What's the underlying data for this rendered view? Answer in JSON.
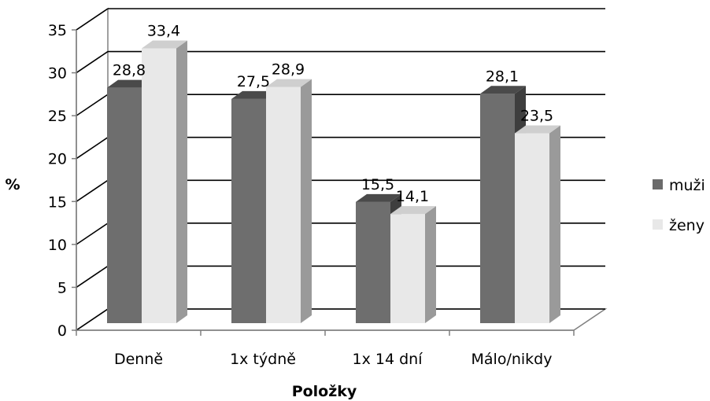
{
  "chart_data": {
    "type": "bar",
    "title": "",
    "xlabel": "Položky",
    "ylabel": "%",
    "ylim": [
      0,
      35
    ],
    "yticks": [
      "0",
      "5",
      "10",
      "15",
      "20",
      "25",
      "30",
      "35"
    ],
    "categories": [
      "Denně",
      "1x týdně",
      "1x 14 dní",
      "Málo/nikdy"
    ],
    "series": [
      {
        "name": "muži",
        "values": [
          28.8,
          27.5,
          15.5,
          28.1
        ],
        "labels": [
          "28,8",
          "27,5",
          "15,5",
          "28,1"
        ],
        "color": "#6b6b6b"
      },
      {
        "name": "ženy",
        "values": [
          33.4,
          28.9,
          14.1,
          23.5
        ],
        "labels": [
          "33,4",
          "28,9",
          "14,1",
          "23,5"
        ],
        "color": "#e8e8e8"
      }
    ],
    "grid": true,
    "legend_position": "right",
    "style": "3d-clustered-column"
  }
}
